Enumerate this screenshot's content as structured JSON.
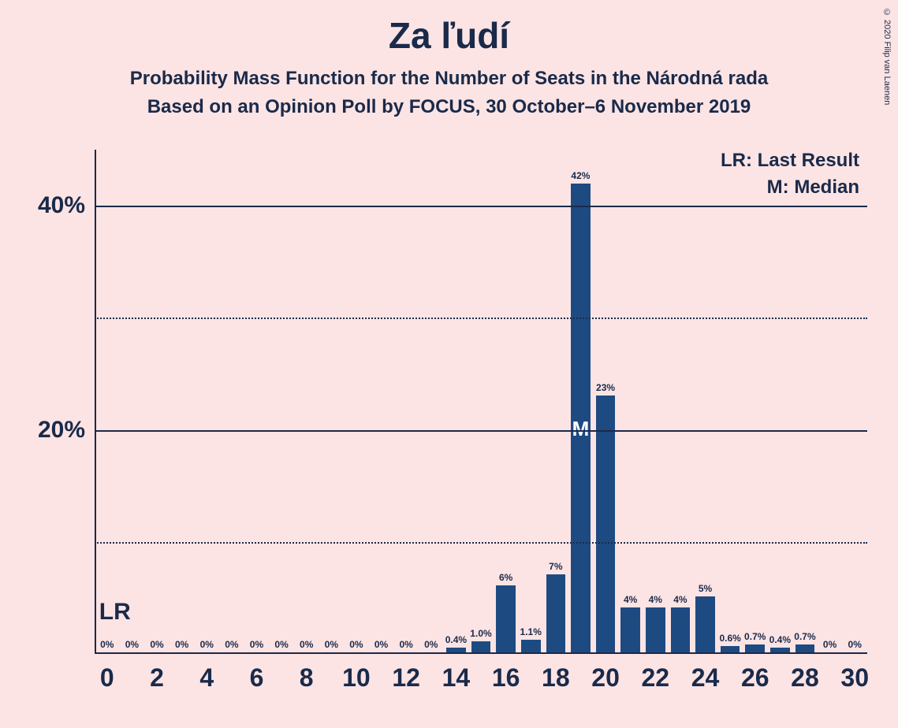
{
  "copyright": "© 2020 Filip van Laenen",
  "title": "Za ľudí",
  "subtitle1": "Probability Mass Function for the Number of Seats in the Národná rada",
  "subtitle2": "Based on an Opinion Poll by FOCUS, 30 October–6 November 2019",
  "legend": {
    "lr": "LR: Last Result",
    "m": "M: Median"
  },
  "chart": {
    "type": "bar",
    "bar_color": "#1e4a82",
    "background_color": "#fce4e4",
    "text_color": "#1a2a4a",
    "ylim": [
      0,
      45
    ],
    "y_ticks_major": [
      20,
      40
    ],
    "y_ticks_minor": [
      10,
      30
    ],
    "y_tick_labels": {
      "20": "20%",
      "40": "40%"
    },
    "x_range": [
      0,
      30
    ],
    "x_ticks": [
      0,
      2,
      4,
      6,
      8,
      10,
      12,
      14,
      16,
      18,
      20,
      22,
      24,
      26,
      28,
      30
    ],
    "bar_width": 0.78,
    "data": [
      {
        "x": 0,
        "v": 0,
        "label": "0%"
      },
      {
        "x": 1,
        "v": 0,
        "label": "0%"
      },
      {
        "x": 2,
        "v": 0,
        "label": "0%"
      },
      {
        "x": 3,
        "v": 0,
        "label": "0%"
      },
      {
        "x": 4,
        "v": 0,
        "label": "0%"
      },
      {
        "x": 5,
        "v": 0,
        "label": "0%"
      },
      {
        "x": 6,
        "v": 0,
        "label": "0%"
      },
      {
        "x": 7,
        "v": 0,
        "label": "0%"
      },
      {
        "x": 8,
        "v": 0,
        "label": "0%"
      },
      {
        "x": 9,
        "v": 0,
        "label": "0%"
      },
      {
        "x": 10,
        "v": 0,
        "label": "0%"
      },
      {
        "x": 11,
        "v": 0,
        "label": "0%"
      },
      {
        "x": 12,
        "v": 0,
        "label": "0%"
      },
      {
        "x": 13,
        "v": 0,
        "label": "0%"
      },
      {
        "x": 14,
        "v": 0.4,
        "label": "0.4%"
      },
      {
        "x": 15,
        "v": 1.0,
        "label": "1.0%"
      },
      {
        "x": 16,
        "v": 6,
        "label": "6%"
      },
      {
        "x": 17,
        "v": 1.1,
        "label": "1.1%"
      },
      {
        "x": 18,
        "v": 7,
        "label": "7%"
      },
      {
        "x": 19,
        "v": 42,
        "label": "42%",
        "median": true
      },
      {
        "x": 20,
        "v": 23,
        "label": "23%"
      },
      {
        "x": 21,
        "v": 4,
        "label": "4%"
      },
      {
        "x": 22,
        "v": 4,
        "label": "4%"
      },
      {
        "x": 23,
        "v": 4,
        "label": "4%"
      },
      {
        "x": 24,
        "v": 5,
        "label": "5%"
      },
      {
        "x": 25,
        "v": 0.6,
        "label": "0.6%"
      },
      {
        "x": 26,
        "v": 0.7,
        "label": "0.7%"
      },
      {
        "x": 27,
        "v": 0.4,
        "label": "0.4%"
      },
      {
        "x": 28,
        "v": 0.7,
        "label": "0.7%"
      },
      {
        "x": 29,
        "v": 0,
        "label": "0%"
      },
      {
        "x": 30,
        "v": 0,
        "label": "0%"
      }
    ],
    "lr_position": 0,
    "lr_text": "LR",
    "median_text": "M"
  }
}
